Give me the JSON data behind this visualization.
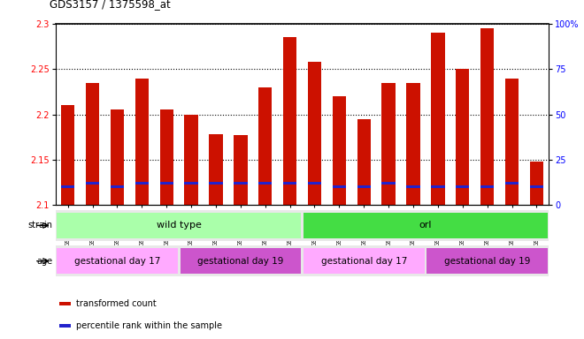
{
  "title": "GDS3157 / 1375598_at",
  "samples": [
    "GSM187669",
    "GSM187670",
    "GSM187671",
    "GSM187672",
    "GSM187673",
    "GSM187674",
    "GSM187675",
    "GSM187676",
    "GSM187677",
    "GSM187678",
    "GSM187679",
    "GSM187680",
    "GSM187681",
    "GSM187682",
    "GSM187683",
    "GSM187684",
    "GSM187685",
    "GSM187686",
    "GSM187687",
    "GSM187688"
  ],
  "transformed_count": [
    2.21,
    2.235,
    2.205,
    2.24,
    2.205,
    2.2,
    2.178,
    2.177,
    2.23,
    2.285,
    2.258,
    2.22,
    2.195,
    2.235,
    2.235,
    2.29,
    2.25,
    2.295,
    2.24,
    2.148
  ],
  "percentile_rank": [
    10,
    12,
    10,
    12,
    12,
    12,
    12,
    12,
    12,
    12,
    12,
    10,
    10,
    12,
    10,
    10,
    10,
    10,
    12,
    10
  ],
  "ymin": 2.1,
  "ymax": 2.3,
  "yticks": [
    2.1,
    2.15,
    2.2,
    2.25,
    2.3
  ],
  "right_yticks": [
    0,
    25,
    50,
    75,
    100
  ],
  "bar_color_red": "#cc1100",
  "bar_color_blue": "#2222cc",
  "strain_groups": [
    {
      "label": "wild type",
      "start": 0,
      "end": 10,
      "color": "#aaffaa"
    },
    {
      "label": "orl",
      "start": 10,
      "end": 20,
      "color": "#44dd44"
    }
  ],
  "age_groups": [
    {
      "label": "gestational day 17",
      "start": 0,
      "end": 5,
      "color": "#ffaaff"
    },
    {
      "label": "gestational day 19",
      "start": 5,
      "end": 10,
      "color": "#cc55cc"
    },
    {
      "label": "gestational day 17",
      "start": 10,
      "end": 15,
      "color": "#ffaaff"
    },
    {
      "label": "gestational day 19",
      "start": 15,
      "end": 20,
      "color": "#cc55cc"
    }
  ],
  "legend_items": [
    {
      "label": "transformed count",
      "color": "#cc1100"
    },
    {
      "label": "percentile rank within the sample",
      "color": "#2222cc"
    }
  ],
  "background_color": "#ffffff"
}
